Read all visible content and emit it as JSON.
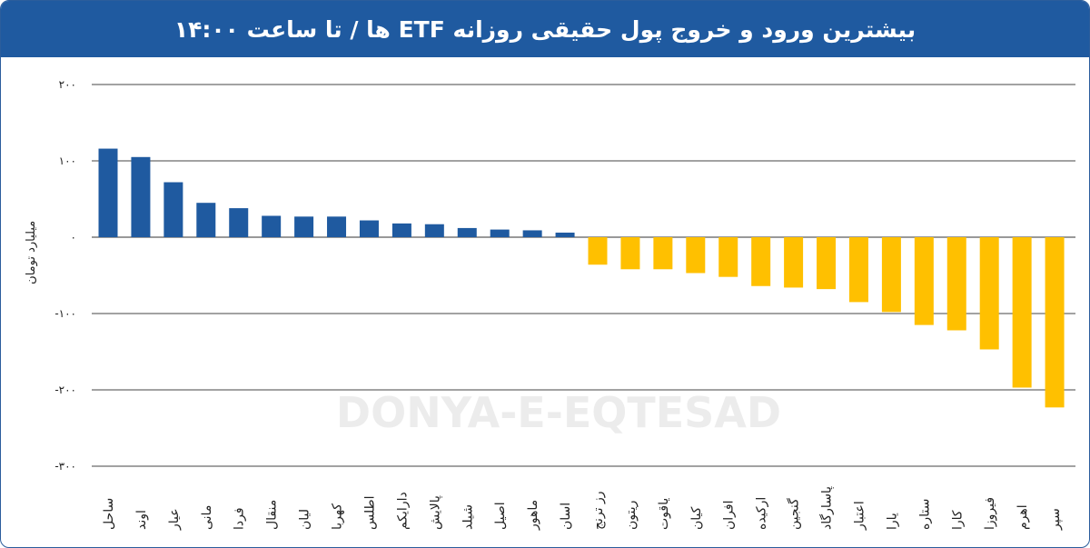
{
  "title": "بیشترین ورود و خروج پول حقیقی روزانه ETF ها / تا ساعت ۱۴:۰۰",
  "watermark": "DONYA-E-EQTESAD",
  "colors": {
    "positive": "#1f5aa0",
    "negative": "#ffc000",
    "header": "#1f5aa0"
  },
  "chart_data": {
    "type": "bar",
    "title": "بیشترین ورود و خروج پول حقیقی روزانه ETF ها / تا ساعت ۱۴:۰۰",
    "xlabel": "",
    "ylabel": "میلیارد تومان",
    "ylim": [
      -300,
      200
    ],
    "yticks": [
      200,
      100,
      0,
      -100,
      -200,
      -300
    ],
    "ytick_labels": [
      "۲۰۰",
      "۱۰۰",
      "۰",
      "-۱۰۰",
      "-۲۰۰",
      "-۳۰۰"
    ],
    "grid": true,
    "categories": [
      "ساحل",
      "اوند",
      "عیار",
      "مانی",
      "فردا",
      "منقال",
      "لیان",
      "کهربا",
      "اطلس",
      "دارایکم",
      "پالایش",
      "شیلد",
      "اصیل",
      "ماهور",
      "اسان",
      "رز ترنج",
      "ریتون",
      "یاقوت",
      "کیان",
      "افران",
      "ارکیده",
      "گنجین",
      "پاسارگاد",
      "اعتبار",
      "یارا",
      "ستاره",
      "کارا",
      "فیروزا",
      "اهرم",
      "سپر"
    ],
    "values": [
      116,
      105,
      72,
      45,
      38,
      28,
      27,
      27,
      22,
      18,
      17,
      12,
      10,
      9,
      6,
      -36,
      -42,
      -42,
      -47,
      -52,
      -64,
      -66,
      -68,
      -85,
      -98,
      -115,
      -122,
      -147,
      -197,
      -223
    ]
  }
}
